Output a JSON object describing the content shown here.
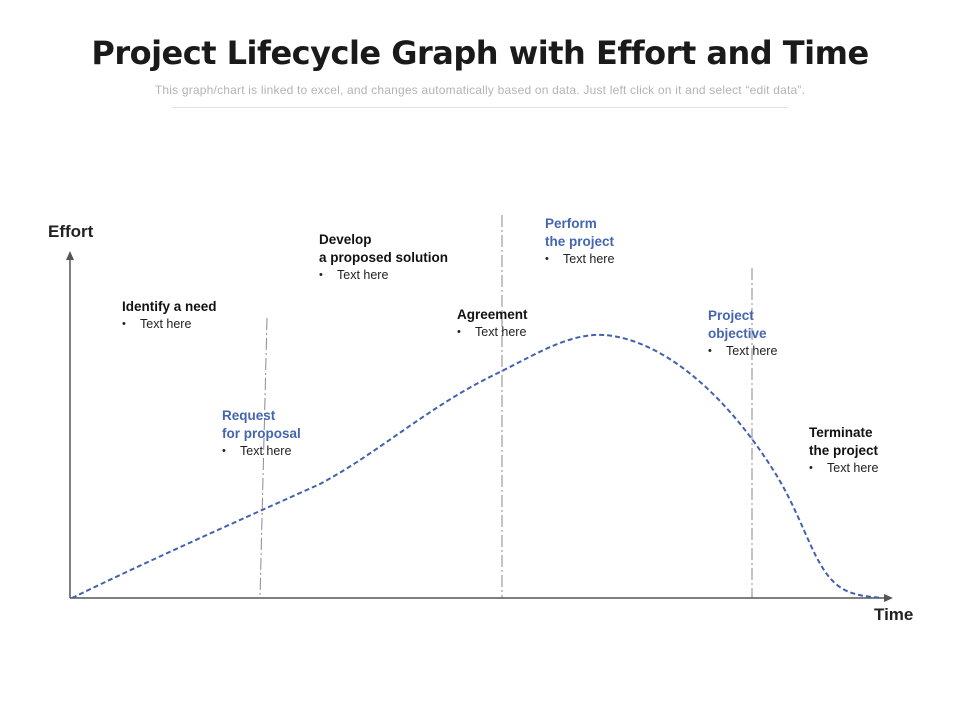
{
  "title": "Project Lifecycle Graph with Effort and Time",
  "subtitle": "This graph/chart is linked to excel, and changes automatically based on data. Just left click on it and select “edit data”.",
  "axes": {
    "y_label": "Effort",
    "x_label": "Time"
  },
  "colors": {
    "curve": "#4461ad",
    "accent_text": "#4466b0",
    "axis": "#555555",
    "divider": "#8a8a8a"
  },
  "phases": [
    {
      "name": "Identify a need",
      "bullet": "Text here",
      "style": "dark"
    },
    {
      "name": "Request\nfor proposal",
      "bullet": "Text here",
      "style": "blue"
    },
    {
      "name": "Develop\na proposed solution",
      "bullet": "Text here",
      "style": "dark"
    },
    {
      "name": "Agreement",
      "bullet": "Text here",
      "style": "dark"
    },
    {
      "name": "Perform\nthe project",
      "bullet": "Text here",
      "style": "blue"
    },
    {
      "name": "Project\nobjective",
      "bullet": "Text here",
      "style": "blue"
    },
    {
      "name": "Terminate\nthe project",
      "bullet": "Text here",
      "style": "dark"
    }
  ]
}
